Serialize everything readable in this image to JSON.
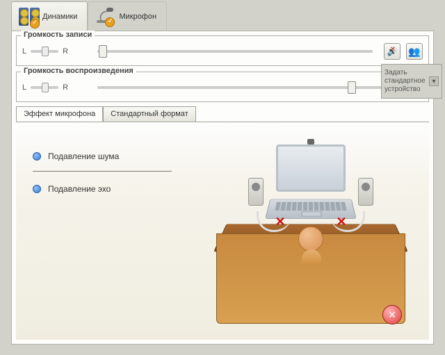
{
  "topTabs": {
    "speakers": "Динамики",
    "microphone": "Микрофон"
  },
  "recording": {
    "title": "Громкость записи",
    "L": "L",
    "R": "R",
    "lrThumbPos": 16,
    "mainThumbPos": 2
  },
  "playback": {
    "title": "Громкость воспроизведения",
    "L": "L",
    "R": "R",
    "lrThumbPos": 16,
    "mainThumbPos": 360
  },
  "subTabs": {
    "effect": "Эффект микрофона",
    "format": "Стандартный формат"
  },
  "options": {
    "noise": "Подавление шума",
    "echo": "Подавление эхо"
  },
  "sideButton": "Задать стандартное устройство",
  "colors": {
    "panelBg": "#fdfdfc",
    "bodyBg": "#d2d2cb",
    "border": "#b0b0a8",
    "deskTop": "#a86a30",
    "deskFront": "#c88a40",
    "redX": "#d01010"
  }
}
